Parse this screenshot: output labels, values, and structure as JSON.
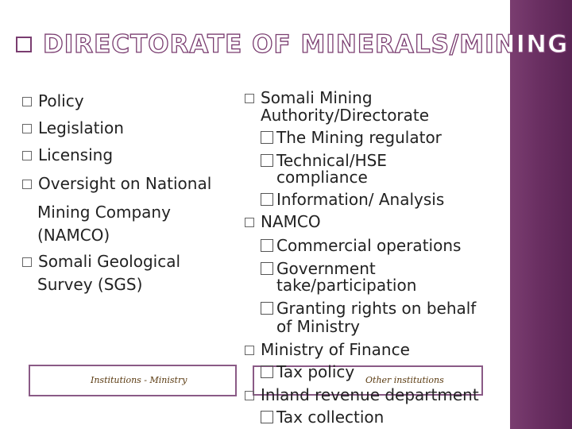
{
  "slide": {
    "title": "DIRECTORATE OF MINERALS/MINING",
    "left_column": {
      "items": [
        {
          "label": "Policy"
        },
        {
          "label": "Legislation"
        },
        {
          "label": "Licensing"
        },
        {
          "label": "Oversight on National",
          "continuation": [
            "Mining Company",
            "(NAMCO)"
          ]
        },
        {
          "label": "Somali Geological",
          "continuation": [
            "Survey (SGS)"
          ]
        }
      ],
      "box_caption": "Institutions - Ministry"
    },
    "right_column": {
      "items": [
        {
          "label": "Somali Mining",
          "continuation": [
            "Authority/Directorate"
          ],
          "sub_items": [
            {
              "label": "The Mining regulator"
            },
            {
              "label": "Technical/HSE",
              "continuation": [
                "compliance"
              ]
            },
            {
              "label": "Information/ Analysis"
            }
          ]
        },
        {
          "label": "NAMCO",
          "sub_items": [
            {
              "label": "Commercial operations"
            },
            {
              "label": "Government",
              "continuation": [
                "take/participation"
              ]
            },
            {
              "label": "Granting rights on behalf",
              "continuation": [
                "of Ministry"
              ]
            }
          ]
        },
        {
          "label": "Ministry of Finance",
          "sub_items": [
            {
              "label": "Tax policy"
            }
          ]
        },
        {
          "label": "Inland revenue department",
          "sub_items": [
            {
              "label": "Tax collection"
            }
          ]
        }
      ],
      "box_caption": "Other institutions"
    }
  }
}
